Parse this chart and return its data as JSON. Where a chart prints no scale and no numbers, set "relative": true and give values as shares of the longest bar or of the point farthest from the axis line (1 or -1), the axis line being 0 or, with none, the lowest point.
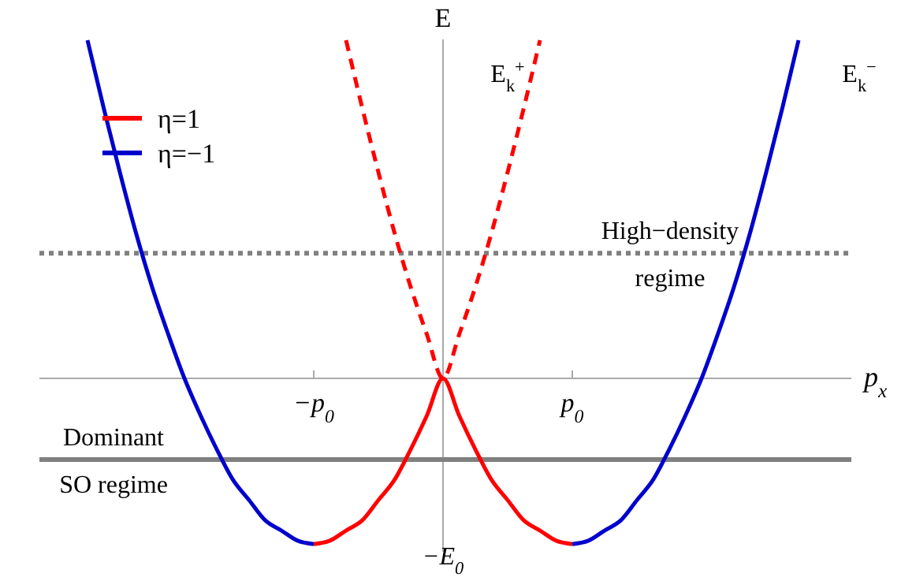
{
  "chart_data": {
    "type": "line",
    "relative": true,
    "xlabel": "p$_{x}$",
    "ylabel": "E",
    "categories": [
      null,
      null,
      null,
      null,
      null,
      null,
      null,
      null,
      null,
      null,
      null,
      null,
      null,
      null,
      "−p$_{0}$",
      null,
      null,
      null,
      null,
      null,
      null,
      null,
      null,
      null,
      null,
      null,
      null,
      null,
      null,
      null,
      "p$_{0}$",
      null,
      null,
      null,
      null,
      null,
      null,
      null,
      null,
      null,
      null,
      null,
      null,
      null,
      null
    ],
    "legend": "top left",
    "marker": "none",
    "series": [
      {
        "name": "η=1",
        "color": "#ff0000",
        "values": [
          null,
          null,
          null,
          null,
          null,
          null,
          null,
          null,
          null,
          null,
          null,
          null,
          null,
          null,
          -0.49,
          -0.48,
          -0.45,
          -0.42,
          -0.36,
          -0.3,
          -0.21,
          -0.11,
          0,
          -0.11,
          -0.21,
          -0.3,
          -0.36,
          -0.42,
          -0.45,
          -0.48,
          -0.49,
          null,
          null,
          null,
          null,
          null,
          null,
          null,
          null,
          null,
          null,
          null,
          null,
          null,
          null
        ]
      },
      {
        "name": "η=−1",
        "color": "#0000cc",
        "values": [
          1,
          0.8,
          0.61,
          0.43,
          0.27,
          0.13,
          0,
          -0.11,
          -0.21,
          -0.3,
          -0.36,
          -0.42,
          -0.45,
          -0.48,
          -0.49,
          null,
          null,
          null,
          null,
          null,
          null,
          null,
          null,
          null,
          null,
          null,
          null,
          null,
          null,
          null,
          -0.49,
          -0.48,
          -0.45,
          -0.42,
          -0.36,
          -0.3,
          -0.21,
          -0.11,
          0,
          0.13,
          0.27,
          0.43,
          0.61,
          0.8,
          1
        ]
      },
      {
        "color": "#ff0000",
        "line_style": "dashed",
        "values": [
          null,
          null,
          null,
          null,
          null,
          null,
          null,
          null,
          null,
          null,
          null,
          null,
          null,
          null,
          null,
          null,
          1,
          0.8,
          0.61,
          0.43,
          0.27,
          0.13,
          0,
          0.13,
          0.27,
          0.43,
          0.61,
          0.8,
          1,
          null,
          null,
          null,
          null,
          null,
          null,
          null,
          null,
          null,
          null,
          null,
          null,
          null,
          null,
          null,
          null
        ]
      }
    ],
    "ref_lines": [
      {
        "axis": "y",
        "value": 0.37,
        "label": "High−density\nregime",
        "color": "#808080",
        "line_style": "dotted"
      },
      {
        "axis": "y",
        "value": -0.24,
        "label": "Dominant\nSO regime",
        "color": "#808080",
        "line_style": "solid"
      }
    ],
    "annotations": [
      "E$_{k}$$^{+}$",
      "E$_{k}$$^{−}$",
      "−E$_{0}$"
    ]
  }
}
